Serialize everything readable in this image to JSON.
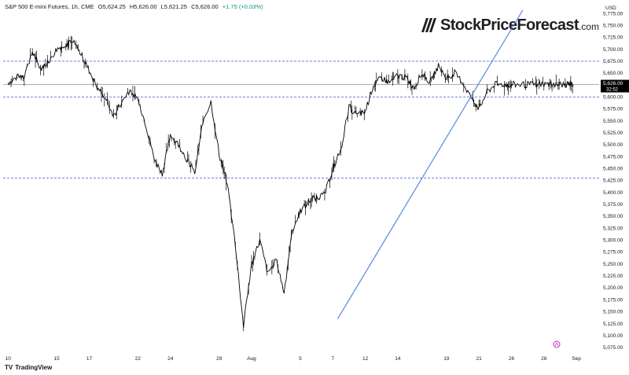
{
  "header": {
    "symbol": "S&P 500 E-mini Futures, 1h, CME",
    "open": "O5,624.25",
    "high": "H5,626.00",
    "low": "L5,621.25",
    "close": "C5,626.00",
    "change": "+1.75 (+0.03%)"
  },
  "brand": {
    "name": "StockPriceForecast",
    "suffix": ".com"
  },
  "footer": {
    "logo_mark": "TV",
    "logo_text": "TradingView"
  },
  "price_tag": {
    "value": "5,626.00",
    "countdown": "32:52"
  },
  "colors": {
    "candle": "#000000",
    "trendline": "#4a7fe0",
    "hline": "#5b6ad6",
    "price_line": "#787b86",
    "price_tag_bg": "#000000",
    "marker": "#c02ac8"
  },
  "chart_data": {
    "type": "line",
    "title": "",
    "xlabel": "",
    "ylabel": "USD",
    "y_axis_label": "USD",
    "ylim": [
      5060,
      5790
    ],
    "ytick_values": [
      5075,
      5100,
      5125,
      5150,
      5175,
      5200,
      5225,
      5250,
      5275,
      5300,
      5325,
      5350,
      5375,
      5400,
      5425,
      5450,
      5475,
      5500,
      5525,
      5550,
      5575,
      5600,
      5625,
      5650,
      5675,
      5700,
      5725,
      5750,
      5775
    ],
    "ytick_labels": [
      "5,075.00",
      "5,100.00",
      "5,125.00",
      "5,150.00",
      "5,175.00",
      "5,200.00",
      "5,225.00",
      "5,250.00",
      "5,275.00",
      "5,300.00",
      "5,325.00",
      "5,350.00",
      "5,375.00",
      "5,400.00",
      "5,425.00",
      "5,450.00",
      "5,475.00",
      "5,500.00",
      "5,525.00",
      "5,550.00",
      "5,575.00",
      "5,600.00",
      "5,625.00",
      "5,650.00",
      "5,675.00",
      "5,700.00",
      "5,725.00",
      "5,750.00",
      "5,775.00"
    ],
    "x_unit": "trading-day index (Jul 10 = 0)",
    "xlim": [
      -0.3,
      36.4
    ],
    "xtick_positions": [
      0,
      3,
      5,
      8,
      10,
      13,
      15,
      18,
      20,
      22,
      24,
      27,
      29,
      31,
      33,
      35
    ],
    "xticks": [
      "10",
      "15",
      "17",
      "22",
      "24",
      "29",
      "Aug",
      "5",
      "7",
      "12",
      "14",
      "19",
      "21",
      "26",
      "28",
      "Sep"
    ],
    "series": [
      {
        "x": [
          0,
          0.5,
          1,
          1.5,
          2,
          2.5,
          3,
          3.5,
          4,
          4.5,
          5,
          5.5,
          6,
          6.5,
          7,
          7.5,
          8,
          8.5,
          9,
          9.5,
          10,
          10.5,
          11,
          11.5,
          12,
          12.5,
          13,
          13.5,
          14,
          14.5,
          15,
          15.5,
          16,
          16.5,
          17,
          17.5,
          18,
          18.5,
          19,
          19.5,
          20,
          20.5,
          21,
          21.5,
          22,
          22.5,
          23,
          23.5,
          24,
          24.5,
          25,
          25.5,
          26,
          26.5,
          27,
          27.5,
          28,
          28.5,
          29,
          29.5,
          30,
          30.5,
          31,
          31.5,
          32,
          32.5,
          33,
          33.5,
          34,
          34.5,
          34.8
        ],
        "values": [
          5630,
          5640,
          5645,
          5695,
          5660,
          5675,
          5700,
          5710,
          5715,
          5690,
          5655,
          5620,
          5600,
          5560,
          5590,
          5615,
          5595,
          5540,
          5470,
          5440,
          5520,
          5500,
          5470,
          5440,
          5550,
          5590,
          5480,
          5420,
          5290,
          5120,
          5250,
          5300,
          5230,
          5260,
          5190,
          5320,
          5360,
          5380,
          5390,
          5395,
          5450,
          5490,
          5580,
          5560,
          5570,
          5625,
          5640,
          5630,
          5645,
          5640,
          5620,
          5650,
          5630,
          5665,
          5640,
          5650,
          5630,
          5600,
          5575,
          5610,
          5626,
          5626,
          5626,
          5626,
          5626,
          5626,
          5626,
          5626,
          5626,
          5626,
          5626
        ]
      }
    ],
    "hlines": [
      5675,
      5626,
      5600,
      5430
    ],
    "trendline": {
      "from": [
        20.3,
        5135
      ],
      "to": [
        31.7,
        5782
      ]
    },
    "last_price": 5626,
    "grid": false,
    "legend": "none"
  }
}
